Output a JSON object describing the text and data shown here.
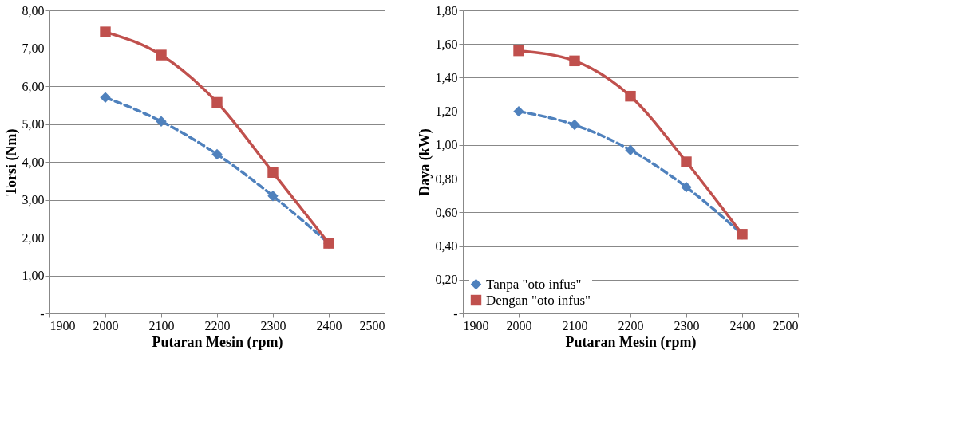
{
  "chart_data": [
    {
      "type": "line",
      "xlabel": "Putaran Mesin (rpm)",
      "ylabel": "Torsi (Nm)",
      "x": [
        2000,
        2100,
        2200,
        2300,
        2400
      ],
      "xlim": [
        1900,
        2500
      ],
      "xticks": [
        1900,
        2000,
        2100,
        2200,
        2300,
        2400,
        2500
      ],
      "ylim": [
        0,
        8
      ],
      "yticks": [
        {
          "value": 0,
          "label": "-"
        },
        {
          "value": 1,
          "label": "1,00"
        },
        {
          "value": 2,
          "label": "2,00"
        },
        {
          "value": 3,
          "label": "3,00"
        },
        {
          "value": 4,
          "label": "4,00"
        },
        {
          "value": 5,
          "label": "5,00"
        },
        {
          "value": 6,
          "label": "6,00"
        },
        {
          "value": 7,
          "label": "7,00"
        },
        {
          "value": 8,
          "label": "8,00"
        }
      ],
      "grid": "y",
      "legend": false,
      "series": [
        {
          "color": "#4f81bd",
          "marker": "diamond",
          "line_style": "dashed",
          "values": [
            5.7,
            5.07,
            4.2,
            3.1,
            1.85
          ]
        },
        {
          "color": "#c0504d",
          "marker": "square",
          "line_style": "solid",
          "values": [
            7.43,
            6.82,
            5.57,
            3.72,
            1.85
          ]
        }
      ]
    },
    {
      "type": "line",
      "xlabel": "Putaran Mesin (rpm)",
      "ylabel": "Daya (kW)",
      "x": [
        2000,
        2100,
        2200,
        2300,
        2400
      ],
      "xlim": [
        1900,
        2500
      ],
      "xticks": [
        1900,
        2000,
        2100,
        2200,
        2300,
        2400,
        2500
      ],
      "ylim": [
        0,
        1.8
      ],
      "yticks": [
        {
          "value": 0,
          "label": "-"
        },
        {
          "value": 0.2,
          "label": "0,20"
        },
        {
          "value": 0.4,
          "label": "0,40"
        },
        {
          "value": 0.6,
          "label": "0,60"
        },
        {
          "value": 0.8,
          "label": "0,80"
        },
        {
          "value": 1,
          "label": "1,00"
        },
        {
          "value": 1.2,
          "label": "1,20"
        },
        {
          "value": 1.4,
          "label": "1,40"
        },
        {
          "value": 1.6,
          "label": "1,60"
        },
        {
          "value": 1.8,
          "label": "1,80"
        }
      ],
      "grid": "y",
      "legend": "bottom left",
      "series": [
        {
          "name": "Tanpa    \"oto infus\"",
          "color": "#4f81bd",
          "marker": "diamond",
          "line_style": "dashed",
          "values": [
            1.2,
            1.12,
            0.97,
            0.75,
            0.47
          ]
        },
        {
          "name": "Dengan \"oto infus\"",
          "color": "#c0504d",
          "marker": "square",
          "line_style": "solid",
          "values": [
            1.56,
            1.5,
            1.29,
            0.9,
            0.47
          ]
        }
      ]
    }
  ]
}
